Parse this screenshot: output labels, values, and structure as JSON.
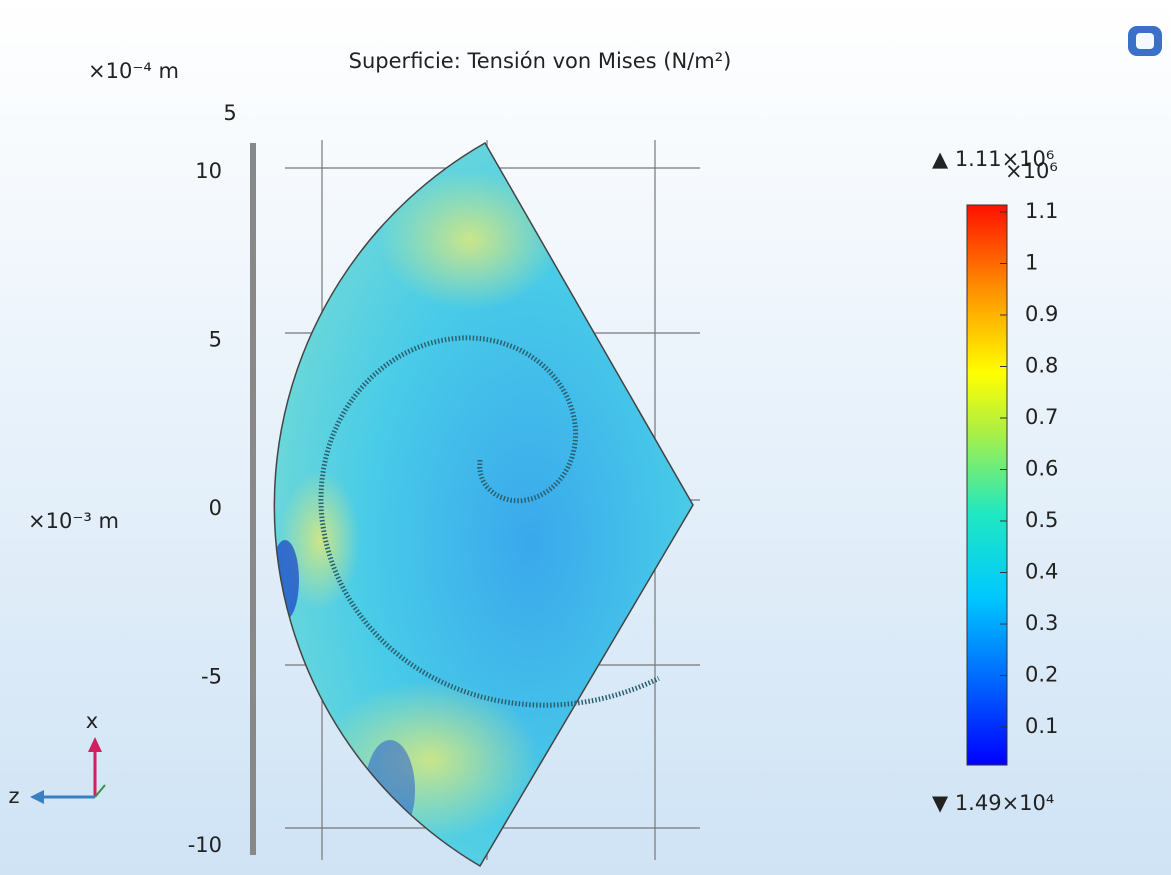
{
  "header": {
    "title": "Superficie: Tensión von Mises (N/m²)"
  },
  "axes": {
    "top_unit": "×10⁻⁴ m",
    "top_tick": "5",
    "left_unit": "×10⁻³ m",
    "left_ticks": [
      "10",
      "5",
      "0",
      "-5",
      "-10"
    ]
  },
  "colorbar": {
    "max_label": "▲ 1.11×10⁶",
    "scale": "×10⁶",
    "ticks": [
      "1.1",
      "1",
      "0.9",
      "0.8",
      "0.7",
      "0.6",
      "0.5",
      "0.4",
      "0.3",
      "0.2",
      "0.1"
    ],
    "min_label": "▼ 1.49×10⁴"
  },
  "triad": {
    "x": "x",
    "z": "z"
  }
}
